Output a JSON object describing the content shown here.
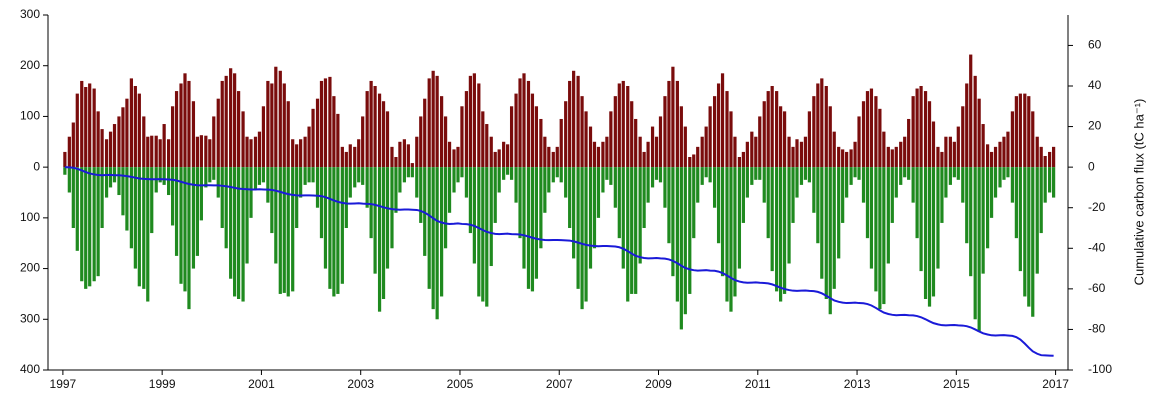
{
  "chart_data": {
    "type": "bar",
    "x": [
      1997.04,
      1997.13,
      1997.21,
      1997.29,
      1997.38,
      1997.46,
      1997.54,
      1997.63,
      1997.71,
      1997.79,
      1997.88,
      1997.96,
      1998.04,
      1998.13,
      1998.21,
      1998.29,
      1998.38,
      1998.46,
      1998.54,
      1998.63,
      1998.71,
      1998.79,
      1998.88,
      1998.96,
      1999.04,
      1999.13,
      1999.21,
      1999.29,
      1999.38,
      1999.46,
      1999.54,
      1999.63,
      1999.71,
      1999.79,
      1999.88,
      1999.96,
      2000.04,
      2000.13,
      2000.21,
      2000.29,
      2000.38,
      2000.46,
      2000.54,
      2000.63,
      2000.71,
      2000.79,
      2000.88,
      2000.96,
      2001.04,
      2001.13,
      2001.21,
      2001.29,
      2001.38,
      2001.46,
      2001.54,
      2001.63,
      2001.71,
      2001.79,
      2001.88,
      2001.96,
      2002.04,
      2002.13,
      2002.21,
      2002.29,
      2002.38,
      2002.46,
      2002.54,
      2002.63,
      2002.71,
      2002.79,
      2002.88,
      2002.96,
      2003.04,
      2003.13,
      2003.21,
      2003.29,
      2003.38,
      2003.46,
      2003.54,
      2003.63,
      2003.71,
      2003.79,
      2003.88,
      2003.96,
      2004.04,
      2004.13,
      2004.21,
      2004.29,
      2004.38,
      2004.46,
      2004.54,
      2004.63,
      2004.71,
      2004.79,
      2004.88,
      2004.96,
      2005.04,
      2005.13,
      2005.21,
      2005.29,
      2005.38,
      2005.46,
      2005.54,
      2005.63,
      2005.71,
      2005.79,
      2005.88,
      2005.96,
      2006.04,
      2006.13,
      2006.21,
      2006.29,
      2006.38,
      2006.46,
      2006.54,
      2006.63,
      2006.71,
      2006.79,
      2006.88,
      2006.96,
      2007.04,
      2007.13,
      2007.21,
      2007.29,
      2007.38,
      2007.46,
      2007.54,
      2007.63,
      2007.71,
      2007.79,
      2007.88,
      2007.96,
      2008.04,
      2008.13,
      2008.21,
      2008.29,
      2008.38,
      2008.46,
      2008.54,
      2008.63,
      2008.71,
      2008.79,
      2008.88,
      2008.96,
      2009.04,
      2009.13,
      2009.21,
      2009.29,
      2009.38,
      2009.46,
      2009.54,
      2009.63,
      2009.71,
      2009.79,
      2009.88,
      2009.96,
      2010.04,
      2010.13,
      2010.21,
      2010.29,
      2010.38,
      2010.46,
      2010.54,
      2010.63,
      2010.71,
      2010.79,
      2010.88,
      2010.96,
      2011.04,
      2011.13,
      2011.21,
      2011.29,
      2011.38,
      2011.46,
      2011.54,
      2011.63,
      2011.71,
      2011.79,
      2011.88,
      2011.96,
      2012.04,
      2012.13,
      2012.21,
      2012.29,
      2012.38,
      2012.46,
      2012.54,
      2012.63,
      2012.71,
      2012.79,
      2012.88,
      2012.96,
      2013.04,
      2013.13,
      2013.21,
      2013.29,
      2013.38,
      2013.46,
      2013.54,
      2013.63,
      2013.71,
      2013.79,
      2013.88,
      2013.96,
      2014.04,
      2014.13,
      2014.21,
      2014.29,
      2014.38,
      2014.46,
      2014.54,
      2014.63,
      2014.71,
      2014.79,
      2014.88,
      2014.96,
      2015.04,
      2015.13,
      2015.21,
      2015.29,
      2015.38,
      2015.46,
      2015.54,
      2015.63,
      2015.71,
      2015.79,
      2015.88,
      2015.96,
      2016.04,
      2016.13,
      2016.21,
      2016.29,
      2016.38,
      2016.46,
      2016.54,
      2016.63,
      2016.71,
      2016.79,
      2016.88,
      2016.96
    ],
    "series": [
      {
        "color": "#7a0c0c",
        "values": [
          30,
          60,
          88,
          145,
          170,
          158,
          165,
          155,
          110,
          75,
          55,
          70,
          85,
          100,
          118,
          135,
          175,
          160,
          145,
          100,
          60,
          62,
          62,
          55,
          85,
          55,
          120,
          150,
          165,
          185,
          170,
          130,
          60,
          63,
          62,
          55,
          100,
          135,
          170,
          180,
          195,
          185,
          150,
          110,
          60,
          55,
          60,
          70,
          120,
          170,
          165,
          198,
          190,
          165,
          130,
          55,
          45,
          55,
          60,
          80,
          115,
          135,
          170,
          175,
          178,
          140,
          105,
          40,
          30,
          45,
          40,
          55,
          100,
          150,
          170,
          160,
          145,
          130,
          110,
          40,
          20,
          50,
          55,
          45,
          8,
          60,
          100,
          135,
          175,
          190,
          180,
          140,
          100,
          50,
          35,
          40,
          120,
          150,
          180,
          185,
          165,
          110,
          85,
          60,
          30,
          35,
          50,
          45,
          120,
          145,
          175,
          185,
          170,
          145,
          120,
          95,
          60,
          40,
          30,
          40,
          95,
          130,
          170,
          190,
          180,
          140,
          110,
          80,
          50,
          40,
          50,
          60,
          110,
          140,
          165,
          170,
          160,
          130,
          95,
          60,
          30,
          50,
          80,
          60,
          100,
          140,
          170,
          198,
          170,
          120,
          80,
          20,
          25,
          40,
          60,
          80,
          120,
          140,
          165,
          185,
          150,
          110,
          60,
          20,
          30,
          50,
          70,
          60,
          100,
          130,
          150,
          160,
          150,
          120,
          110,
          60,
          40,
          55,
          50,
          60,
          110,
          140,
          165,
          175,
          160,
          120,
          70,
          40,
          35,
          30,
          35,
          50,
          100,
          130,
          150,
          155,
          140,
          115,
          70,
          40,
          35,
          40,
          50,
          60,
          95,
          140,
          155,
          160,
          150,
          130,
          90,
          40,
          30,
          60,
          60,
          50,
          80,
          120,
          165,
          222,
          180,
          135,
          85,
          45,
          30,
          40,
          50,
          60,
          70,
          110,
          140,
          145,
          145,
          140,
          110,
          60,
          40,
          22,
          30,
          40
        ]
      },
      {
        "color": "#1f8a1f",
        "values": [
          -15,
          -50,
          -120,
          -165,
          -225,
          -240,
          -235,
          -225,
          -215,
          -120,
          -60,
          -40,
          -30,
          -55,
          -95,
          -125,
          -160,
          -200,
          -235,
          -240,
          -265,
          -130,
          -50,
          -30,
          -35,
          -55,
          -115,
          -175,
          -230,
          -245,
          -280,
          -200,
          -175,
          -105,
          -40,
          -30,
          -25,
          -60,
          -120,
          -160,
          -220,
          -255,
          -260,
          -265,
          -190,
          -100,
          -45,
          -35,
          -30,
          -70,
          -130,
          -190,
          -250,
          -248,
          -255,
          -245,
          -120,
          -60,
          -35,
          -30,
          -30,
          -80,
          -140,
          -200,
          -240,
          -255,
          -250,
          -230,
          -120,
          -60,
          -40,
          -30,
          -35,
          -80,
          -140,
          -210,
          -285,
          -260,
          -200,
          -160,
          -90,
          -50,
          -30,
          -20,
          -20,
          -60,
          -110,
          -175,
          -240,
          -280,
          -300,
          -255,
          -160,
          -90,
          -50,
          -30,
          -20,
          -60,
          -130,
          -190,
          -255,
          -265,
          -275,
          -195,
          -110,
          -50,
          -25,
          -15,
          -25,
          -70,
          -140,
          -200,
          -240,
          -245,
          -220,
          -160,
          -90,
          -50,
          -30,
          -20,
          -30,
          -60,
          -120,
          -180,
          -240,
          -280,
          -265,
          -200,
          -160,
          -100,
          -50,
          -25,
          -35,
          -80,
          -140,
          -200,
          -265,
          -250,
          -250,
          -190,
          -120,
          -70,
          -40,
          -25,
          -30,
          -80,
          -150,
          -215,
          -265,
          -320,
          -290,
          -250,
          -140,
          -70,
          -35,
          -20,
          -30,
          -80,
          -150,
          -215,
          -265,
          -285,
          -255,
          -200,
          -110,
          -60,
          -35,
          -25,
          -25,
          -70,
          -140,
          -205,
          -245,
          -265,
          -250,
          -190,
          -110,
          -60,
          -35,
          -25,
          -30,
          -90,
          -150,
          -220,
          -260,
          -290,
          -240,
          -180,
          -110,
          -60,
          -35,
          -20,
          -25,
          -70,
          -140,
          -200,
          -245,
          -280,
          -270,
          -190,
          -110,
          -60,
          -35,
          -20,
          -25,
          -70,
          -140,
          -205,
          -260,
          -275,
          -255,
          -200,
          -110,
          -60,
          -35,
          -20,
          -25,
          -70,
          -150,
          -215,
          -300,
          -325,
          -210,
          -160,
          -100,
          -60,
          -40,
          -25,
          -20,
          -70,
          -140,
          -205,
          -255,
          -275,
          -295,
          -210,
          -130,
          -70,
          -50,
          -60
        ]
      },
      {
        "type": "line",
        "axis": "y2",
        "color": "#1a1ad8",
        "values": [
          0,
          -0.1,
          -0.3,
          -0.8,
          -1.6,
          -2.4,
          -3.1,
          -3.6,
          -3.9,
          -4,
          -3.9,
          -3.8,
          -4,
          -4,
          -4.2,
          -4.4,
          -4.8,
          -5.2,
          -5.6,
          -5.8,
          -5.9,
          -6,
          -6,
          -5.9,
          -6,
          -6.1,
          -6.2,
          -6.6,
          -7.2,
          -7.8,
          -8.3,
          -8.7,
          -8.9,
          -9,
          -8.9,
          -8.9,
          -9,
          -9,
          -9.2,
          -9.4,
          -9.8,
          -10.2,
          -10.6,
          -10.8,
          -10.9,
          -11,
          -11,
          -10.9,
          -11,
          -11.1,
          -11.2,
          -11.6,
          -12.2,
          -12.8,
          -13.3,
          -13.7,
          -13.9,
          -14,
          -13.9,
          -13.9,
          -14,
          -14.1,
          -14.3,
          -14.8,
          -15.6,
          -16.4,
          -17.1,
          -17.6,
          -17.9,
          -18,
          -17.9,
          -17.8,
          -18,
          -18.1,
          -18.2,
          -18.6,
          -19.2,
          -19.8,
          -20.3,
          -20.7,
          -20.9,
          -21,
          -20.9,
          -20.9,
          -21,
          -21.1,
          -21.6,
          -22.4,
          -23.8,
          -25.2,
          -26.5,
          -27.3,
          -27.8,
          -28,
          -27.9,
          -27.7,
          -28,
          -28.1,
          -28.4,
          -29,
          -30,
          -31,
          -31.9,
          -32.5,
          -32.9,
          -33,
          -32.9,
          -32.8,
          -33,
          -33.1,
          -33.2,
          -33.6,
          -34.2,
          -34.8,
          -35.3,
          -35.7,
          -35.9,
          -36,
          -35.9,
          -35.9,
          -36,
          -36.1,
          -36.2,
          -36.6,
          -37.2,
          -37.8,
          -38.3,
          -38.7,
          -38.9,
          -39,
          -38.9,
          -38.9,
          -39,
          -39.1,
          -39.5,
          -40.2,
          -41.4,
          -42.6,
          -43.7,
          -44.4,
          -44.8,
          -45,
          -44.9,
          -44.8,
          -45,
          -45.1,
          -45.5,
          -46.2,
          -47.4,
          -48.6,
          -49.7,
          -50.4,
          -50.8,
          -51,
          -50.9,
          -50.8,
          -51,
          -51.1,
          -51.5,
          -52.2,
          -53.4,
          -54.6,
          -55.7,
          -56.4,
          -56.8,
          -57,
          -56.9,
          -56.8,
          -57,
          -57.1,
          -57.3,
          -57.8,
          -58.6,
          -59.4,
          -60.1,
          -60.6,
          -60.9,
          -61,
          -60.9,
          -60.8,
          -61,
          -61.1,
          -61.5,
          -62.2,
          -63.4,
          -64.6,
          -65.7,
          -66.4,
          -66.8,
          -67,
          -66.9,
          -66.8,
          -67,
          -67.1,
          -67.5,
          -68.2,
          -69.4,
          -70.6,
          -71.7,
          -72.4,
          -72.8,
          -73,
          -72.9,
          -72.8,
          -73,
          -73.1,
          -73.4,
          -74,
          -75,
          -76,
          -76.9,
          -77.5,
          -77.9,
          -78,
          -77.9,
          -77.8,
          -78,
          -78.1,
          -78.4,
          -79,
          -80,
          -81,
          -81.9,
          -82.5,
          -82.9,
          -83,
          -82.9,
          -82.8,
          -83,
          -83.2,
          -83.8,
          -85,
          -87,
          -89,
          -90.8,
          -92,
          -92.7,
          -92.8,
          -92.9,
          -93
        ]
      }
    ],
    "xlim": [
      1996.7,
      2017.25
    ],
    "xticks": [
      1997,
      1999,
      2001,
      2003,
      2005,
      2007,
      2009,
      2011,
      2013,
      2015,
      2017
    ],
    "ylim": [
      -400,
      300
    ],
    "yticks": [
      300,
      200,
      100,
      0,
      {
        "value": -100,
        "label": "100"
      },
      {
        "value": -200,
        "label": "200"
      },
      {
        "value": -300,
        "label": "300"
      },
      {
        "value": -400,
        "label": "400"
      }
    ],
    "y2lim": [
      -100,
      75
    ],
    "y2ticks": [
      60,
      40,
      20,
      0,
      -20,
      -40,
      -60,
      -80,
      -100
    ],
    "y2label": "Cumulative carbon flux (tC ha⁻¹)"
  }
}
